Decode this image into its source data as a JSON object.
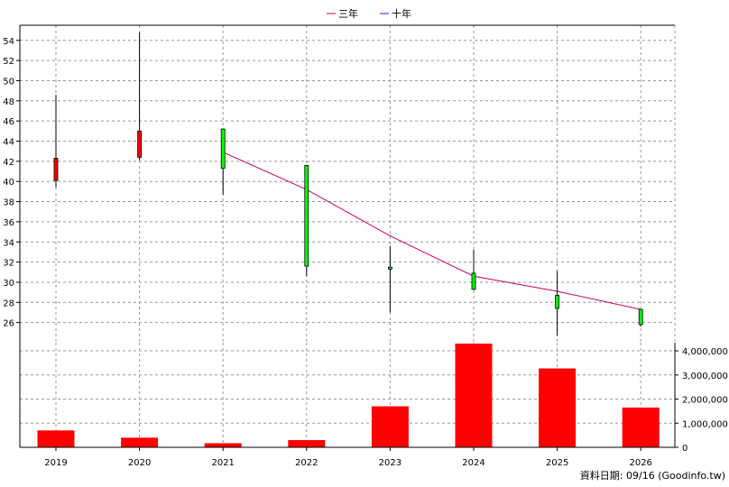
{
  "chart_data": [
    {
      "type": "candlestick",
      "categories": [
        "2019",
        "2020",
        "2021",
        "2022",
        "2023",
        "2024",
        "2025",
        "2026"
      ],
      "ohlc": [
        {
          "x": "2019",
          "open": 40.1,
          "high": 48.6,
          "low": 39.4,
          "close": 42.3
        },
        {
          "x": "2020",
          "open": 42.4,
          "high": 54.8,
          "low": 42.1,
          "close": 45.0
        },
        {
          "x": "2021",
          "open": 45.2,
          "high": 45.2,
          "low": 38.7,
          "close": 41.3
        },
        {
          "x": "2022",
          "open": 41.6,
          "high": 41.6,
          "low": 30.6,
          "close": 31.6
        },
        {
          "x": "2023",
          "open": 31.5,
          "high": 33.6,
          "low": 27.0,
          "close": 31.3
        },
        {
          "x": "2024",
          "open": 30.9,
          "high": 33.2,
          "low": 29.2,
          "close": 29.3
        },
        {
          "x": "2025",
          "open": 28.7,
          "high": 31.1,
          "low": 24.7,
          "close": 27.4
        },
        {
          "x": "2026",
          "open": 27.3,
          "high": 27.3,
          "low": 25.6,
          "close": 25.8
        }
      ],
      "series": [
        {
          "name": "三年",
          "color": "#cc0066",
          "values": [
            null,
            null,
            42.9,
            39.2,
            34.6,
            30.6,
            29.1,
            27.3
          ]
        },
        {
          "name": "十年",
          "color": "#6600cc",
          "values": [
            null,
            null,
            null,
            null,
            null,
            null,
            null,
            null
          ]
        }
      ],
      "up_color": "#ff0000",
      "down_color": "#00ff00",
      "ylim": [
        24.0,
        55.5
      ],
      "yticks": [
        26,
        28,
        30,
        32,
        34,
        36,
        38,
        40,
        42,
        44,
        46,
        48,
        50,
        52,
        54
      ],
      "grid": true,
      "legend_position": "top-center"
    },
    {
      "type": "bar",
      "categories": [
        "2019",
        "2020",
        "2021",
        "2022",
        "2023",
        "2024",
        "2025",
        "2026"
      ],
      "values": [
        700000,
        400000,
        170000,
        300000,
        1700000,
        4300000,
        3270000,
        1650000
      ],
      "color": "#ff0000",
      "ylim": [
        0,
        4300000
      ],
      "yticks": [
        0,
        1000000,
        2000000,
        3000000,
        4000000
      ],
      "ytick_labels": [
        "0",
        "1,000,000",
        "2,000,000",
        "3,000,000",
        "4,000,000"
      ],
      "y_axis_position": "right",
      "grid": true
    }
  ],
  "footer": {
    "text": "資料日期: 09/16  (Goodinfo.tw)"
  }
}
